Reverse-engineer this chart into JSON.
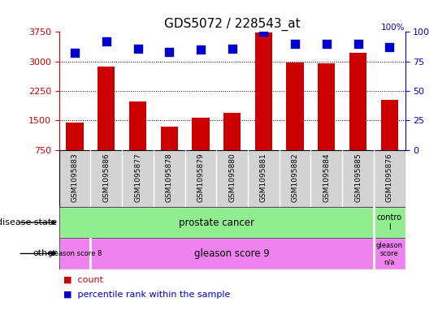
{
  "title": "GDS5072 / 228543_at",
  "samples": [
    "GSM1095883",
    "GSM1095886",
    "GSM1095877",
    "GSM1095878",
    "GSM1095879",
    "GSM1095880",
    "GSM1095881",
    "GSM1095882",
    "GSM1095884",
    "GSM1095885",
    "GSM1095876"
  ],
  "counts": [
    1450,
    2870,
    1980,
    1350,
    1570,
    1690,
    3730,
    2980,
    2960,
    3210,
    2030
  ],
  "percentile_ranks": [
    82,
    92,
    86,
    83,
    85,
    86,
    100,
    90,
    90,
    90,
    87
  ],
  "ylim_left": [
    750,
    3750
  ],
  "ylim_right": [
    0,
    100
  ],
  "yticks_left": [
    750,
    1500,
    2250,
    3000,
    3750
  ],
  "yticks_right": [
    0,
    25,
    50,
    75,
    100
  ],
  "bar_color": "#cc0000",
  "dot_color": "#0000cc",
  "background_color": "#ffffff",
  "plot_bg_color": "#ffffff",
  "tick_label_color_left": "#cc0000",
  "tick_label_color_right": "#0000cc",
  "bar_width": 0.55,
  "percentile_marker_size": 48,
  "grid_ticks": [
    1500,
    2250,
    3000
  ],
  "sample_bg_color": "#d3d3d3",
  "ds_label_color": "#006400",
  "disease_state_color": "#90ee90",
  "other_color": "#ee82ee",
  "legend_items": [
    "count",
    "percentile rank within the sample"
  ]
}
